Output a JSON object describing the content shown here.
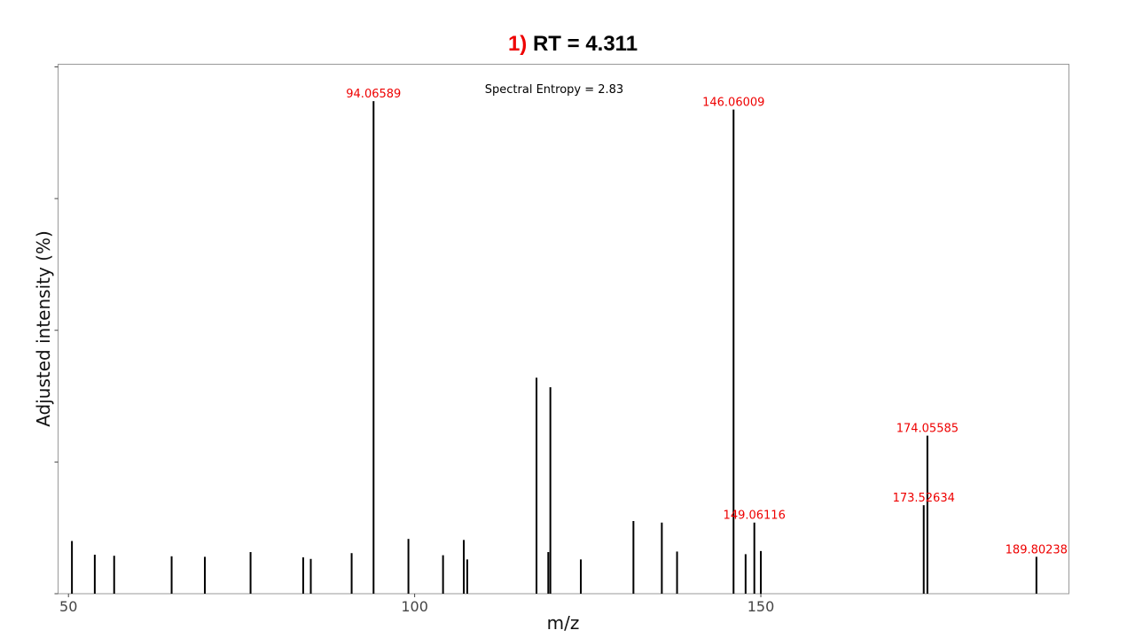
{
  "title": {
    "number": "1)",
    "text": "RT = 4.311"
  },
  "colors": {
    "title_number": "#ee0000",
    "peak_label": "#ee0000",
    "bar": "#000000",
    "frame": "#999999"
  },
  "chart_data": {
    "type": "bar",
    "title": "RT = 4.311",
    "xlabel": "m/z",
    "ylabel": "Adjusted intensity (%)",
    "annotation": "Spectral Entropy = 2.83",
    "xlim": [
      48.5,
      194.5
    ],
    "ylim": [
      0,
      100.5
    ],
    "xticks": [
      50,
      100,
      150
    ],
    "yticks": [
      0,
      25,
      50,
      75,
      100
    ],
    "grid": false,
    "legend": "none",
    "peaks": [
      {
        "mz": 50.5,
        "intensity": 10.0
      },
      {
        "mz": 53.8,
        "intensity": 7.4
      },
      {
        "mz": 56.6,
        "intensity": 7.2
      },
      {
        "mz": 64.9,
        "intensity": 7.1
      },
      {
        "mz": 69.7,
        "intensity": 7.0
      },
      {
        "mz": 76.3,
        "intensity": 7.9
      },
      {
        "mz": 83.9,
        "intensity": 6.9
      },
      {
        "mz": 85.0,
        "intensity": 6.6
      },
      {
        "mz": 90.9,
        "intensity": 7.7
      },
      {
        "mz": 94.06589,
        "intensity": 93.5,
        "label": "94.06589"
      },
      {
        "mz": 99.1,
        "intensity": 10.4
      },
      {
        "mz": 104.1,
        "intensity": 7.3
      },
      {
        "mz": 107.1,
        "intensity": 10.2
      },
      {
        "mz": 107.6,
        "intensity": 6.5
      },
      {
        "mz": 117.6,
        "intensity": 41.0
      },
      {
        "mz": 119.3,
        "intensity": 7.9
      },
      {
        "mz": 119.6,
        "intensity": 39.2
      },
      {
        "mz": 124.0,
        "intensity": 6.5
      },
      {
        "mz": 131.6,
        "intensity": 13.8
      },
      {
        "mz": 135.7,
        "intensity": 13.5
      },
      {
        "mz": 137.9,
        "intensity": 8.0
      },
      {
        "mz": 146.06009,
        "intensity": 91.9,
        "label": "146.06009"
      },
      {
        "mz": 147.8,
        "intensity": 7.5
      },
      {
        "mz": 149.06116,
        "intensity": 13.5,
        "label": "149.06116"
      },
      {
        "mz": 150.0,
        "intensity": 8.1
      },
      {
        "mz": 173.52634,
        "intensity": 16.8,
        "label": "173.52634"
      },
      {
        "mz": 174.05585,
        "intensity": 30.0,
        "label": "174.05585"
      },
      {
        "mz": 189.80238,
        "intensity": 7.0,
        "label": "189.80238"
      }
    ]
  }
}
